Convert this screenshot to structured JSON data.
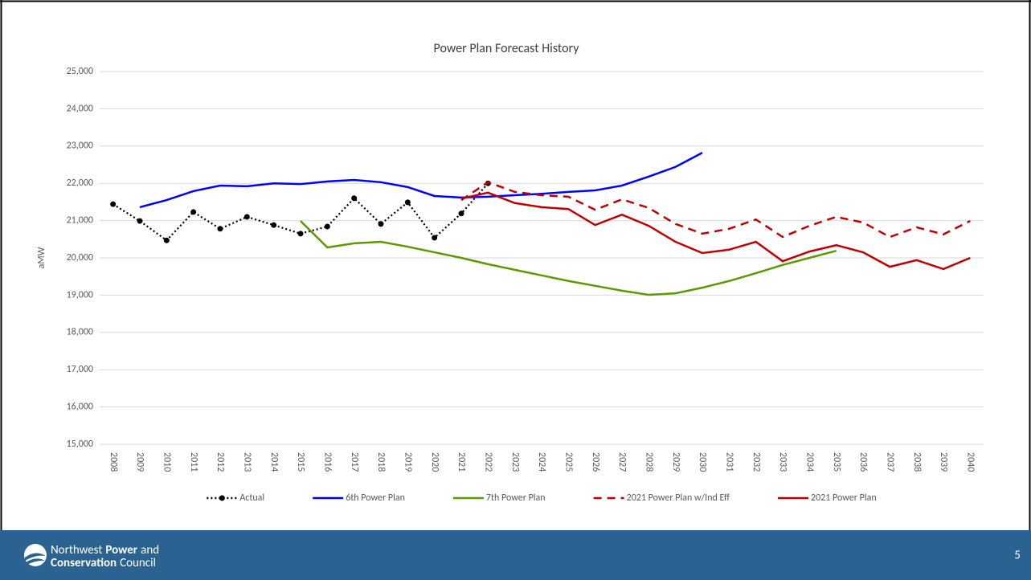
{
  "chart_data": {
    "type": "line",
    "title": "Power Plan Forecast History",
    "y_label": "aMW",
    "categories": [
      "2008",
      "2009",
      "2010",
      "2011",
      "2012",
      "2013",
      "2014",
      "2015",
      "2016",
      "2017",
      "2018",
      "2019",
      "2020",
      "2021",
      "2022",
      "2023",
      "2024",
      "2025",
      "2026",
      "2027",
      "2028",
      "2029",
      "2030",
      "2031",
      "2032",
      "2033",
      "2034",
      "2035",
      "2036",
      "2037",
      "2038",
      "2039",
      "2040"
    ],
    "ylim": [
      15000,
      25000
    ],
    "yticks": [
      {
        "value": 15000,
        "label": "15,000"
      },
      {
        "value": 16000,
        "label": "16,000"
      },
      {
        "value": 17000,
        "label": "17,000"
      },
      {
        "value": 18000,
        "label": "18,000"
      },
      {
        "value": 19000,
        "label": "19,000"
      },
      {
        "value": 20000,
        "label": "20,000"
      },
      {
        "value": 21000,
        "label": "21,000"
      },
      {
        "value": 22000,
        "label": "22,000"
      },
      {
        "value": 23000,
        "label": "23,000"
      },
      {
        "value": 24000,
        "label": "24,000"
      },
      {
        "value": 25000,
        "label": "25,000"
      }
    ],
    "grid": true,
    "legend": "bottom",
    "series": [
      {
        "name": "Actual",
        "color": "#000000",
        "style": "dotted",
        "markers": true,
        "values": [
          21440,
          20990,
          20470,
          21230,
          20780,
          21100,
          20880,
          20650,
          20840,
          21600,
          20910,
          21490,
          20540,
          21190,
          22000,
          null,
          null,
          null,
          null,
          null,
          null,
          null,
          null,
          null,
          null,
          null,
          null,
          null,
          null,
          null,
          null,
          null,
          null
        ]
      },
      {
        "name": "6th Power Plan",
        "color": "#0000ff",
        "style": "solid",
        "markers": false,
        "values": [
          null,
          21360,
          21550,
          21790,
          21940,
          21920,
          22000,
          21980,
          22050,
          22090,
          22030,
          21900,
          21660,
          21620,
          21640,
          21680,
          21720,
          21770,
          21810,
          21940,
          22180,
          22440,
          22820,
          null,
          null,
          null,
          null,
          null,
          null,
          null,
          null,
          null,
          null
        ]
      },
      {
        "name": "7th Power Plan",
        "color": "#5b9a00",
        "style": "solid",
        "markers": false,
        "values": [
          null,
          null,
          null,
          null,
          null,
          null,
          null,
          20990,
          20280,
          20390,
          20430,
          20300,
          20150,
          20000,
          19830,
          19680,
          19530,
          19380,
          19250,
          19120,
          19010,
          19050,
          19200,
          19380,
          19590,
          19810,
          20000,
          20190,
          null,
          null,
          null,
          null,
          null
        ]
      },
      {
        "name": "2021 Power Plan w/Ind Eff",
        "color": "#c00000",
        "style": "dashed",
        "markers": false,
        "values": [
          null,
          null,
          null,
          null,
          null,
          null,
          null,
          null,
          null,
          null,
          null,
          null,
          null,
          21550,
          22030,
          21770,
          21680,
          21640,
          21290,
          21570,
          21340,
          20910,
          20650,
          20780,
          21030,
          20560,
          20860,
          21100,
          20950,
          20560,
          20820,
          20630,
          20990
        ]
      },
      {
        "name": "2021 Power Plan",
        "color": "#c00000",
        "style": "solid",
        "markers": false,
        "values": [
          null,
          null,
          null,
          null,
          null,
          null,
          null,
          null,
          null,
          null,
          null,
          null,
          null,
          21590,
          21750,
          21470,
          21360,
          21310,
          20880,
          21160,
          20860,
          20430,
          20130,
          20220,
          20430,
          19910,
          20170,
          20340,
          20150,
          19760,
          19940,
          19700,
          20000
        ]
      }
    ]
  },
  "organization": {
    "line1": [
      "Northwest",
      "Power",
      "and"
    ],
    "line2": [
      "Conservation",
      "Council"
    ]
  },
  "page_number": "5"
}
